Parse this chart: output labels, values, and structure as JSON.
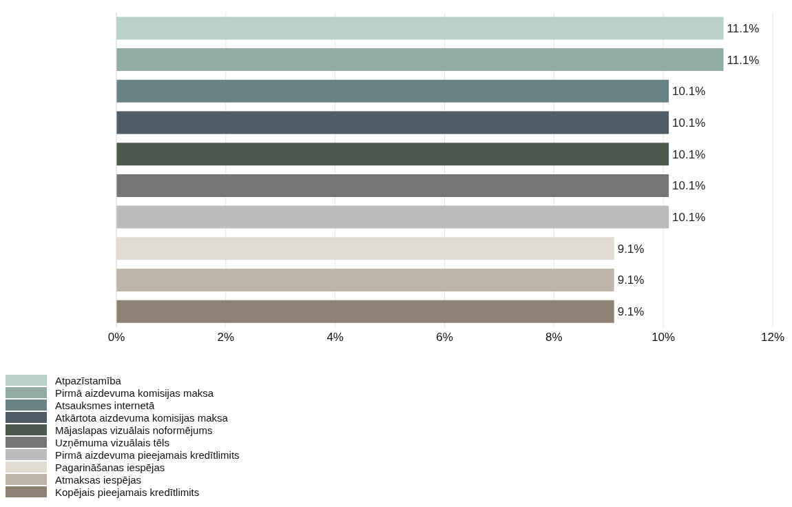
{
  "chart_data": {
    "type": "bar",
    "orientation": "horizontal",
    "stacked": true,
    "categories": [
      null,
      null,
      null,
      null,
      null,
      null,
      null,
      null,
      null,
      null
    ],
    "series": [
      {
        "name": "Atpazīstamība",
        "color": "#b9cfc9",
        "values": [
          11.1,
          null,
          null,
          null,
          null,
          null,
          null,
          null,
          null,
          null
        ],
        "value_labels": [
          "11.1%",
          null,
          null,
          null,
          null,
          null,
          null,
          null,
          null,
          null
        ]
      },
      {
        "name": "Pirmā aizdevuma komisijas maksa",
        "color": "#93aba5",
        "values": [
          null,
          11.1,
          null,
          null,
          null,
          null,
          null,
          null,
          null,
          null
        ],
        "value_labels": [
          null,
          "11.1%",
          null,
          null,
          null,
          null,
          null,
          null,
          null,
          null
        ]
      },
      {
        "name": "Atsauksmes internetā",
        "color": "#6a8383",
        "values": [
          null,
          null,
          10.1,
          null,
          null,
          null,
          null,
          null,
          null,
          null
        ],
        "value_labels": [
          null,
          null,
          "10.1%",
          null,
          null,
          null,
          null,
          null,
          null,
          null
        ]
      },
      {
        "name": "Atkārtota aizdevuma komisijas maksa",
        "color": "#4f5e66",
        "values": [
          null,
          null,
          null,
          10.1,
          null,
          null,
          null,
          null,
          null,
          null
        ],
        "value_labels": [
          null,
          null,
          null,
          "10.1%",
          null,
          null,
          null,
          null,
          null,
          null
        ]
      },
      {
        "name": "Mājaslapas vizuālais noformējums",
        "color": "#4f584f",
        "values": [
          null,
          null,
          null,
          null,
          10.1,
          null,
          null,
          null,
          null,
          null
        ],
        "value_labels": [
          null,
          null,
          null,
          null,
          "10.1%",
          null,
          null,
          null,
          null,
          null
        ]
      },
      {
        "name": "Uzņēmuma vizuālais tēls",
        "color": "#767676",
        "values": [
          null,
          null,
          null,
          null,
          null,
          10.1,
          null,
          null,
          null,
          null
        ],
        "value_labels": [
          null,
          null,
          null,
          null,
          null,
          "10.1%",
          null,
          null,
          null,
          null
        ]
      },
      {
        "name": "Pirmā aizdevuma pieejamais kredītlimits",
        "color": "#bcbcbe",
        "values": [
          null,
          null,
          null,
          null,
          null,
          null,
          10.1,
          null,
          null,
          null
        ],
        "value_labels": [
          null,
          null,
          null,
          null,
          null,
          null,
          "10.1%",
          null,
          null,
          null
        ]
      },
      {
        "name": "Pagarināšanas iespējas",
        "color": "#dfddd1",
        "values": [
          null,
          null,
          null,
          null,
          null,
          null,
          null,
          9.1,
          null,
          null
        ],
        "value_labels": [
          null,
          null,
          null,
          null,
          null,
          null,
          null,
          "9.1%",
          null,
          null
        ]
      },
      {
        "name": "Atmaksas iespējas",
        "color": "#bdb5a7",
        "values": [
          null,
          null,
          null,
          null,
          null,
          null,
          null,
          null,
          9.1,
          null
        ],
        "value_labels": [
          null,
          null,
          null,
          null,
          null,
          null,
          null,
          null,
          "9.1%",
          null
        ]
      },
      {
        "name": "Kopējais pieejamais kredītlimits",
        "color": "#8e8275",
        "values": [
          null,
          null,
          null,
          null,
          null,
          null,
          null,
          null,
          null,
          9.1
        ],
        "value_labels": [
          null,
          null,
          null,
          null,
          null,
          null,
          null,
          null,
          null,
          "9.1%"
        ]
      }
    ],
    "xlim": [
      0,
      12
    ],
    "xticks": [
      {
        "value": 0,
        "label": "0%"
      },
      {
        "value": 2,
        "label": "2%"
      },
      {
        "value": 4,
        "label": "4%"
      },
      {
        "value": 6,
        "label": "6%"
      },
      {
        "value": 8,
        "label": "8%"
      },
      {
        "value": 10,
        "label": "10%"
      },
      {
        "value": 12,
        "label": "12%"
      }
    ],
    "grid": "x",
    "legend": "bottom left",
    "tick_labels": "x"
  }
}
